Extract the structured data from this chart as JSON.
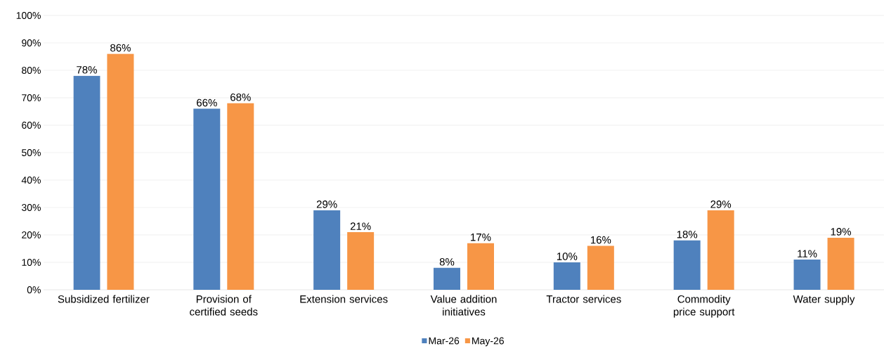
{
  "chart_data": {
    "type": "bar",
    "categories": [
      "Subsidized fertilizer",
      "Provision of certified seeds",
      "Extension services",
      "Value addition initiatives",
      "Tractor services",
      "Commodity price support",
      "Water supply"
    ],
    "series": [
      {
        "name": "Mar-26",
        "color": "#4f81bd",
        "values": [
          78,
          66,
          29,
          8,
          10,
          18,
          11
        ],
        "value_labels": [
          "78%",
          "66%",
          "29%",
          "8%",
          "10%",
          "18%",
          "11%"
        ]
      },
      {
        "name": "May-26",
        "color": "#f79646",
        "values": [
          86,
          68,
          21,
          17,
          16,
          29,
          19
        ],
        "value_labels": [
          "86%",
          "68%",
          "21%",
          "17%",
          "16%",
          "29%",
          "19%"
        ]
      }
    ],
    "ylim": [
      0,
      100
    ],
    "yticks": [
      {
        "value": 0,
        "label": "0%"
      },
      {
        "value": 10,
        "label": "10%"
      },
      {
        "value": 20,
        "label": "20%"
      },
      {
        "value": 30,
        "label": "30%"
      },
      {
        "value": 40,
        "label": "40%"
      },
      {
        "value": 50,
        "label": "50%"
      },
      {
        "value": 60,
        "label": "60%"
      },
      {
        "value": 70,
        "label": "70%"
      },
      {
        "value": 80,
        "label": "80%"
      },
      {
        "value": 90,
        "label": "90%"
      },
      {
        "value": 100,
        "label": "100%"
      }
    ],
    "grid": "y",
    "legend": "bottom"
  }
}
